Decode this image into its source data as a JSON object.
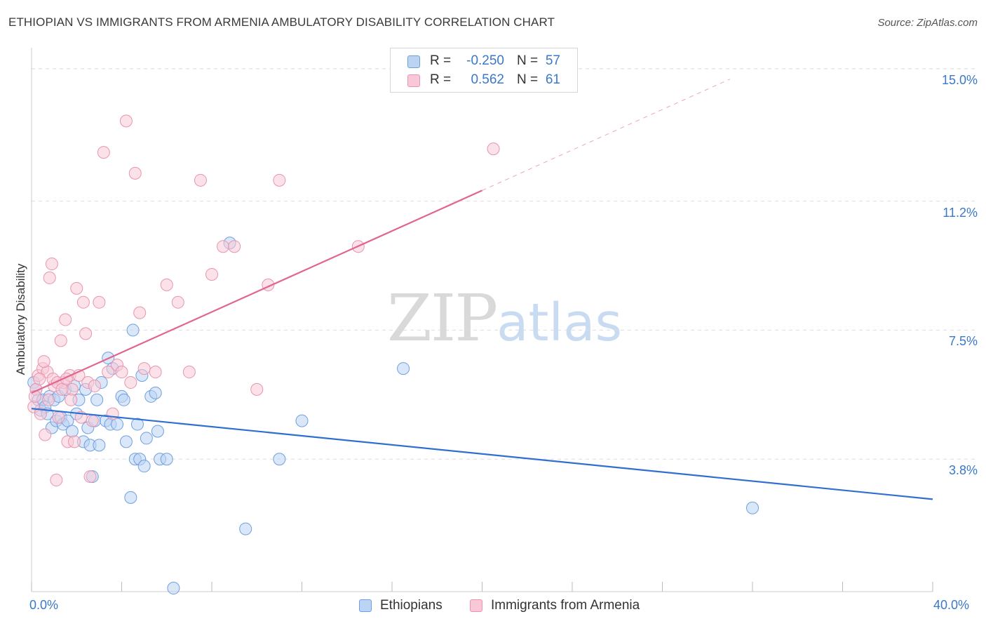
{
  "header": {
    "title": "ETHIOPIAN VS IMMIGRANTS FROM ARMENIA AMBULATORY DISABILITY CORRELATION CHART",
    "source": "Source: ZipAtlas.com"
  },
  "watermark": {
    "zip": "ZIP",
    "atlas": "atlas"
  },
  "legend": {
    "rows": [
      {
        "r_label": "R =",
        "r_value": "-0.250",
        "n_label": "N =",
        "n_value": "57"
      },
      {
        "r_label": "R =",
        "r_value": "0.562",
        "n_label": "N =",
        "n_value": "61"
      }
    ]
  },
  "colors": {
    "blue_fill": "#bcd4f4",
    "blue_stroke": "#6f9fe0",
    "blue_line": "#2f6fd0",
    "pink_fill": "#f8c8d6",
    "pink_stroke": "#e994b0",
    "pink_line": "#e06690",
    "grid": "#dddddd",
    "tick_text": "#3a78c9"
  },
  "chart_data": {
    "type": "scatter",
    "title": "ETHIOPIAN VS IMMIGRANTS FROM ARMENIA AMBULATORY DISABILITY CORRELATION CHART",
    "xlabel": "",
    "ylabel": "Ambulatory Disability",
    "xlim": [
      0,
      40
    ],
    "ylim": [
      0,
      15.4
    ],
    "x_tick_labels": [
      "0.0%",
      "40.0%"
    ],
    "y_ticks": [
      {
        "value": 3.8,
        "label": "3.8%"
      },
      {
        "value": 7.5,
        "label": "7.5%"
      },
      {
        "value": 11.2,
        "label": "11.2%"
      },
      {
        "value": 15.0,
        "label": "15.0%"
      }
    ],
    "grid": true,
    "legend_position": "top-center",
    "series": [
      {
        "name": "Ethiopians",
        "r": -0.25,
        "n": 57,
        "trend": {
          "x0": 0.0,
          "y0": 5.25,
          "x1": 40.0,
          "y1": 2.65,
          "dashed_from_x": null
        },
        "points": [
          [
            0.1,
            6.0
          ],
          [
            0.2,
            5.8
          ],
          [
            0.3,
            5.5
          ],
          [
            0.4,
            5.2
          ],
          [
            0.5,
            5.5
          ],
          [
            0.6,
            5.3
          ],
          [
            0.7,
            5.1
          ],
          [
            0.8,
            5.6
          ],
          [
            0.9,
            4.7
          ],
          [
            1.0,
            5.5
          ],
          [
            1.1,
            4.9
          ],
          [
            1.2,
            5.6
          ],
          [
            1.3,
            5.0
          ],
          [
            1.4,
            4.8
          ],
          [
            1.5,
            5.8
          ],
          [
            1.6,
            4.9
          ],
          [
            1.8,
            4.6
          ],
          [
            1.9,
            5.9
          ],
          [
            2.0,
            5.1
          ],
          [
            2.1,
            5.5
          ],
          [
            2.3,
            4.3
          ],
          [
            2.4,
            5.8
          ],
          [
            2.5,
            4.7
          ],
          [
            2.6,
            4.2
          ],
          [
            2.7,
            3.3
          ],
          [
            2.8,
            4.9
          ],
          [
            2.9,
            5.5
          ],
          [
            3.0,
            4.2
          ],
          [
            3.1,
            6.0
          ],
          [
            3.3,
            4.9
          ],
          [
            3.4,
            6.7
          ],
          [
            3.5,
            4.8
          ],
          [
            3.6,
            6.4
          ],
          [
            3.8,
            4.8
          ],
          [
            4.0,
            5.6
          ],
          [
            4.1,
            5.5
          ],
          [
            4.2,
            4.3
          ],
          [
            4.4,
            2.7
          ],
          [
            4.5,
            7.5
          ],
          [
            4.6,
            3.8
          ],
          [
            4.7,
            4.8
          ],
          [
            4.8,
            3.8
          ],
          [
            4.9,
            6.2
          ],
          [
            5.0,
            3.6
          ],
          [
            5.1,
            4.4
          ],
          [
            5.3,
            5.6
          ],
          [
            5.5,
            5.7
          ],
          [
            5.6,
            4.6
          ],
          [
            5.7,
            3.8
          ],
          [
            6.0,
            3.8
          ],
          [
            6.3,
            0.1
          ],
          [
            8.8,
            10.0
          ],
          [
            9.5,
            1.8
          ],
          [
            11.0,
            3.8
          ],
          [
            12.0,
            4.9
          ],
          [
            16.5,
            6.4
          ],
          [
            32.0,
            2.4
          ]
        ]
      },
      {
        "name": "Immigrants from Armenia",
        "r": 0.562,
        "n": 61,
        "trend": {
          "x0": 0.0,
          "y0": 5.7,
          "x1": 31.0,
          "y1": 14.7,
          "dashed_from_x": 20.0
        },
        "points": [
          [
            0.1,
            5.3
          ],
          [
            0.2,
            5.8
          ],
          [
            0.3,
            6.2
          ],
          [
            0.4,
            5.1
          ],
          [
            0.5,
            6.4
          ],
          [
            0.6,
            4.5
          ],
          [
            0.7,
            6.3
          ],
          [
            0.8,
            9.0
          ],
          [
            0.9,
            9.4
          ],
          [
            1.0,
            5.9
          ],
          [
            1.1,
            3.2
          ],
          [
            1.2,
            5.0
          ],
          [
            1.3,
            7.2
          ],
          [
            1.4,
            6.0
          ],
          [
            1.5,
            7.8
          ],
          [
            1.6,
            4.3
          ],
          [
            1.7,
            6.2
          ],
          [
            1.8,
            5.8
          ],
          [
            1.9,
            4.3
          ],
          [
            2.0,
            8.7
          ],
          [
            2.1,
            6.2
          ],
          [
            2.2,
            5.0
          ],
          [
            2.3,
            8.3
          ],
          [
            2.4,
            7.4
          ],
          [
            2.5,
            6.0
          ],
          [
            2.6,
            3.3
          ],
          [
            2.7,
            4.9
          ],
          [
            2.8,
            5.9
          ],
          [
            3.0,
            8.3
          ],
          [
            3.2,
            12.6
          ],
          [
            3.4,
            6.3
          ],
          [
            3.6,
            5.1
          ],
          [
            3.8,
            6.5
          ],
          [
            4.0,
            6.3
          ],
          [
            4.2,
            13.5
          ],
          [
            4.4,
            6.0
          ],
          [
            4.6,
            12.0
          ],
          [
            4.8,
            8.0
          ],
          [
            5.0,
            6.4
          ],
          [
            5.5,
            6.3
          ],
          [
            6.0,
            8.8
          ],
          [
            6.5,
            8.3
          ],
          [
            7.0,
            6.3
          ],
          [
            7.5,
            11.8
          ],
          [
            8.0,
            9.1
          ],
          [
            8.5,
            9.9
          ],
          [
            9.0,
            9.9
          ],
          [
            10.0,
            5.8
          ],
          [
            10.5,
            8.8
          ],
          [
            11.0,
            11.8
          ],
          [
            14.5,
            9.9
          ],
          [
            20.5,
            12.7
          ],
          [
            0.15,
            5.6
          ],
          [
            0.35,
            6.1
          ],
          [
            0.55,
            6.6
          ],
          [
            0.75,
            5.5
          ],
          [
            0.95,
            6.1
          ],
          [
            1.15,
            6.0
          ],
          [
            1.35,
            5.8
          ],
          [
            1.55,
            6.1
          ],
          [
            1.75,
            5.5
          ]
        ]
      }
    ]
  },
  "axes": {
    "y_title": "Ambulatory Disability",
    "x_min_label": "0.0%",
    "x_max_label": "40.0%"
  },
  "bottom_legend": [
    {
      "label": "Ethiopians"
    },
    {
      "label": "Immigrants from Armenia"
    }
  ]
}
